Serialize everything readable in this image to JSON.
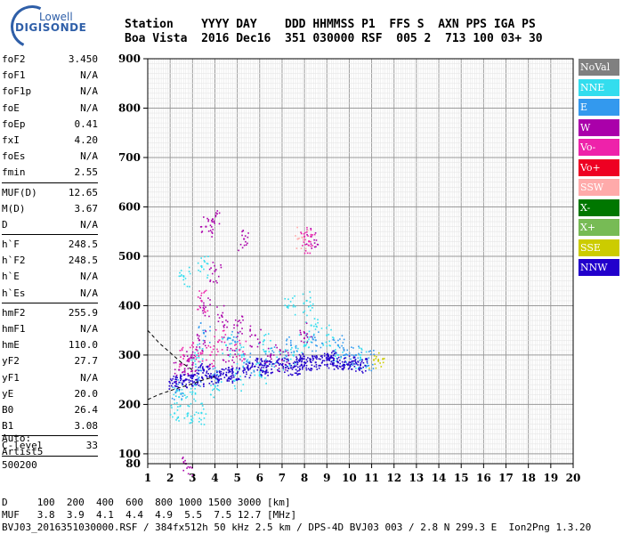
{
  "header": {
    "line1": "Station    YYYY DAY    DDD HHMMSS P1  FFS S  AXN PPS IGA PS",
    "line2": "Boa Vista  2016 Dec16  351 030000 RSF  005 2  713 100 03+ 30"
  },
  "logo": {
    "line1": "Lowell",
    "line2": "DIGISONDE"
  },
  "params": [
    {
      "label": "foF2",
      "value": "3.450"
    },
    {
      "label": "foF1",
      "value": "N/A"
    },
    {
      "label": "foF1p",
      "value": "N/A"
    },
    {
      "label": "foE",
      "value": "N/A"
    },
    {
      "label": "foEp",
      "value": "0.41"
    },
    {
      "label": "fxI",
      "value": "4.20"
    },
    {
      "label": "foEs",
      "value": "N/A"
    },
    {
      "label": "fmin",
      "value": "2.55",
      "sep": true
    },
    {
      "label": "MUF(D)",
      "value": "12.65"
    },
    {
      "label": "M(D)",
      "value": "3.67"
    },
    {
      "label": "D",
      "value": "N/A",
      "sep": true
    },
    {
      "label": "h`F",
      "value": "248.5"
    },
    {
      "label": "h`F2",
      "value": "248.5"
    },
    {
      "label": "h`E",
      "value": "N/A"
    },
    {
      "label": "h`Es",
      "value": "N/A",
      "sep": true
    },
    {
      "label": "hmF2",
      "value": "255.9"
    },
    {
      "label": "hmF1",
      "value": "N/A"
    },
    {
      "label": "hmE",
      "value": "110.0"
    },
    {
      "label": "yF2",
      "value": "27.7"
    },
    {
      "label": "yF1",
      "value": "N/A"
    },
    {
      "label": "yE",
      "value": "20.0"
    },
    {
      "label": "B0",
      "value": "26.4"
    },
    {
      "label": "B1",
      "value": "3.08",
      "sep": true
    },
    {
      "label": "C-level",
      "value": "33",
      "sep": true
    }
  ],
  "auto": {
    "line1": "Auto:",
    "line2": "Artist5",
    "line3": "500200"
  },
  "footer": {
    "line1": "D     100  200  400  600  800 1000 1500 3000 [km]",
    "line2": "MUF   3.8  3.9  4.1  4.4  4.9  5.5  7.5 12.7 [MHz]",
    "line3": "BVJ03_2016351030000.RSF / 384fx512h 50 kHz 2.5 km / DPS-4D BVJ03 003 / 2.8 N 299.3 E  Ion2Png 1.3.20"
  },
  "legend": [
    {
      "label": "NoVal",
      "color": "#808080"
    },
    {
      "label": "NNE",
      "color": "#33ddee"
    },
    {
      "label": "E",
      "color": "#3399ee"
    },
    {
      "label": "W",
      "color": "#aa00aa"
    },
    {
      "label": "Vo-",
      "color": "#ee22aa"
    },
    {
      "label": "Vo+",
      "color": "#ee0022"
    },
    {
      "label": "SSW",
      "color": "#ffaaaa"
    },
    {
      "label": "X-",
      "color": "#007700"
    },
    {
      "label": "X+",
      "color": "#77bb55"
    },
    {
      "label": "SSE",
      "color": "#cccc00"
    },
    {
      "label": "NNW",
      "color": "#2200cc"
    }
  ],
  "chart_data": {
    "type": "scatter",
    "xlim": [
      1,
      20
    ],
    "ylim": [
      80,
      900
    ],
    "xticks": [
      "1",
      "2",
      "3",
      "4",
      "5",
      "6",
      "7",
      "8",
      "9",
      "10",
      "11",
      "12",
      "13",
      "14",
      "15",
      "16",
      "17",
      "18",
      "19",
      "20"
    ],
    "yticks": [
      "100",
      "200",
      "300",
      "400",
      "500",
      "600",
      "700",
      "800",
      "900"
    ],
    "ytick_bottom_label": "80",
    "grid": true,
    "xminor": 0.1,
    "yminor": 10,
    "point_clusters": [
      {
        "series": "NNE",
        "points": [
          [
            2.2,
            182
          ],
          [
            2.8,
            182
          ],
          [
            3.4,
            183
          ],
          [
            2.4,
            215
          ],
          [
            3.0,
            225
          ],
          [
            4.0,
            238
          ],
          [
            5.0,
            250
          ],
          [
            6.0,
            265
          ],
          [
            7.0,
            290
          ],
          [
            7.5,
            300
          ],
          [
            8.0,
            320
          ],
          [
            8.3,
            360
          ],
          [
            9.0,
            340
          ],
          [
            9.5,
            300
          ],
          [
            10.5,
            295
          ],
          [
            7.3,
            400
          ],
          [
            8.1,
            410
          ],
          [
            6.2,
            330
          ],
          [
            5.2,
            300
          ],
          [
            4.5,
            320
          ],
          [
            3.2,
            300
          ],
          [
            3.4,
            480
          ],
          [
            2.6,
            460
          ]
        ]
      },
      {
        "series": "E",
        "points": [
          [
            2.3,
            230
          ],
          [
            3.1,
            260
          ],
          [
            4.1,
            260
          ],
          [
            5.5,
            285
          ],
          [
            6.5,
            300
          ],
          [
            7.4,
            320
          ],
          [
            8.5,
            330
          ],
          [
            9.5,
            320
          ],
          [
            10.3,
            300
          ],
          [
            10.8,
            290
          ],
          [
            3.5,
            345
          ],
          [
            4.8,
            330
          ],
          [
            9.8,
            300
          ]
        ]
      },
      {
        "series": "W",
        "points": [
          [
            2.4,
            270
          ],
          [
            3.0,
            280
          ],
          [
            3.3,
            330
          ],
          [
            3.5,
            400
          ],
          [
            3.6,
            560
          ],
          [
            4.0,
            470
          ],
          [
            4.3,
            380
          ],
          [
            5.0,
            360
          ],
          [
            5.8,
            340
          ],
          [
            6.5,
            300
          ],
          [
            7.0,
            290
          ],
          [
            8.0,
            345
          ],
          [
            8.3,
            540
          ],
          [
            2.8,
            290
          ],
          [
            4.6,
            300
          ],
          [
            3.9,
            575
          ],
          [
            5.3,
            535
          ],
          [
            2.7,
            80
          ]
        ]
      },
      {
        "series": "Vo-",
        "points": [
          [
            2.6,
            300
          ],
          [
            3.2,
            310
          ],
          [
            3.4,
            410
          ],
          [
            4.2,
            330
          ],
          [
            5.1,
            310
          ],
          [
            8.2,
            530
          ],
          [
            8.0,
            540
          ],
          [
            3.8,
            300
          ]
        ]
      },
      {
        "series": "SSW",
        "points": [
          [
            7.7,
            535
          ],
          [
            7.9,
            538
          ]
        ]
      },
      {
        "series": "SSE",
        "points": [
          [
            11.1,
            290
          ],
          [
            11.3,
            288
          ],
          [
            11.5,
            292
          ]
        ]
      },
      {
        "series": "NNW",
        "points": [
          [
            2.2,
            245
          ],
          [
            2.7,
            250
          ],
          [
            3.2,
            250
          ],
          [
            4.0,
            255
          ],
          [
            4.8,
            265
          ],
          [
            5.5,
            270
          ],
          [
            6.3,
            275
          ],
          [
            7.0,
            280
          ],
          [
            7.5,
            275
          ],
          [
            8.0,
            285
          ],
          [
            8.5,
            285
          ],
          [
            9.0,
            290
          ],
          [
            9.5,
            285
          ],
          [
            10.0,
            285
          ],
          [
            10.5,
            280
          ],
          [
            3.5,
            270
          ],
          [
            4.5,
            260
          ],
          [
            6.0,
            280
          ],
          [
            7.8,
            290
          ],
          [
            9.2,
            295
          ]
        ]
      }
    ],
    "curves": [
      {
        "name": "dashed-left",
        "style": "dashed",
        "points": [
          [
            1.0,
            350
          ],
          [
            1.5,
            325
          ],
          [
            2.0,
            305
          ],
          [
            2.5,
            285
          ],
          [
            3.0,
            270
          ]
        ]
      },
      {
        "name": "dashed-lower",
        "style": "dashed",
        "points": [
          [
            1.0,
            210
          ],
          [
            1.5,
            220
          ],
          [
            2.0,
            228
          ],
          [
            2.5,
            235
          ],
          [
            3.0,
            242
          ],
          [
            3.5,
            250
          ],
          [
            4.0,
            256
          ]
        ]
      }
    ]
  }
}
